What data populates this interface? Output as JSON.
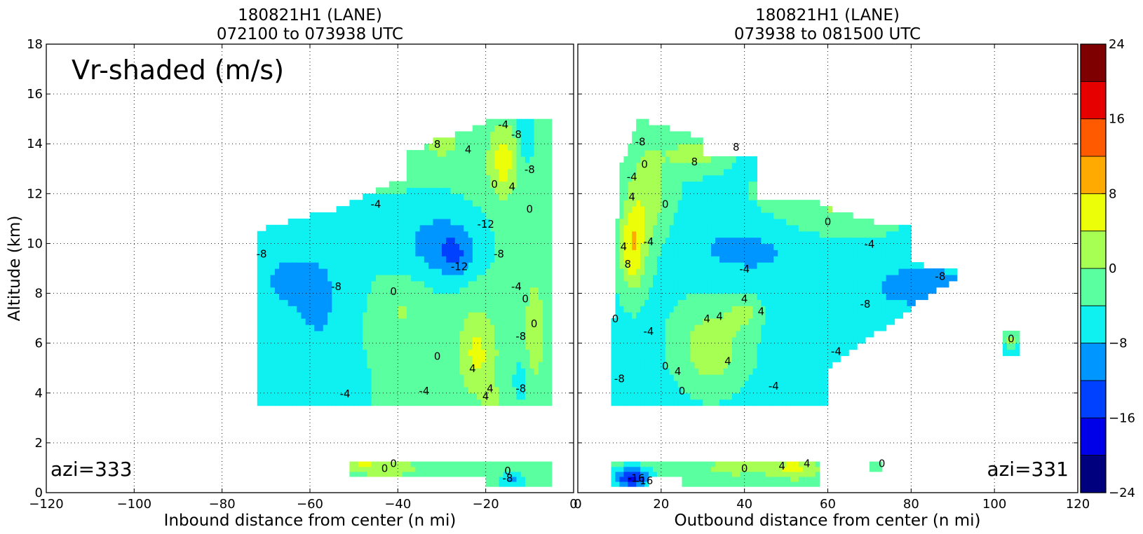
{
  "chart_data": [
    {
      "type": "heatmap",
      "title": "180821H1 (LANE)\n072100 to 073938 UTC",
      "title_lines": [
        "180821H1 (LANE)",
        "072100 to 073938 UTC"
      ],
      "annotation": "Vr-shaded (m/s)",
      "azi_label": "azi=333",
      "xlabel": "Inbound distance from center (n mi)",
      "ylabel": "Altitude (km)",
      "xlim": [
        -120,
        0
      ],
      "ylim": [
        0,
        18
      ],
      "x_ticks": [
        -120,
        -100,
        -80,
        -60,
        -40,
        -20,
        0
      ],
      "x_tick_labels": [
        "−120",
        "−100",
        "−80",
        "−60",
        "−40",
        "−20",
        "0"
      ],
      "y_ticks": [
        0,
        2,
        4,
        6,
        8,
        10,
        12,
        14,
        16,
        18
      ],
      "grid": true,
      "contour_labels": [
        {
          "text": "-8",
          "x": -71,
          "y": 9.6
        },
        {
          "text": "-8",
          "x": -54,
          "y": 8.3
        },
        {
          "text": "-4",
          "x": -45,
          "y": 11.6
        },
        {
          "text": "0",
          "x": -41,
          "y": 8.1
        },
        {
          "text": "-12",
          "x": -20,
          "y": 10.8
        },
        {
          "text": "-12",
          "x": -26,
          "y": 9.1
        },
        {
          "text": "-8",
          "x": -17,
          "y": 9.6
        },
        {
          "text": "-4",
          "x": -13,
          "y": 8.3
        },
        {
          "text": "0",
          "x": -11,
          "y": 7.8
        },
        {
          "text": "0",
          "x": -9,
          "y": 6.8
        },
        {
          "text": "-8",
          "x": -12,
          "y": 6.3
        },
        {
          "text": "0",
          "x": -31,
          "y": 5.5
        },
        {
          "text": "4",
          "x": -23,
          "y": 5.0
        },
        {
          "text": "4",
          "x": -19,
          "y": 4.2
        },
        {
          "text": "4",
          "x": -20,
          "y": 3.9
        },
        {
          "text": "-8",
          "x": -12,
          "y": 4.2
        },
        {
          "text": "-4",
          "x": -52,
          "y": 4.0
        },
        {
          "text": "-4",
          "x": -34,
          "y": 4.1
        },
        {
          "text": "0",
          "x": -18,
          "y": 12.4
        },
        {
          "text": "4",
          "x": -24,
          "y": 13.8
        },
        {
          "text": "8",
          "x": -31,
          "y": 14.0
        },
        {
          "text": "-4",
          "x": -16,
          "y": 14.8
        },
        {
          "text": "-8",
          "x": -13,
          "y": 14.4
        },
        {
          "text": "-8",
          "x": -10,
          "y": 13.0
        },
        {
          "text": "0",
          "x": -10,
          "y": 11.4
        },
        {
          "text": "4",
          "x": -14,
          "y": 12.3
        },
        {
          "text": "0",
          "x": -43,
          "y": 1.0
        },
        {
          "text": "0",
          "x": -41,
          "y": 1.2
        },
        {
          "text": "0",
          "x": -15,
          "y": 0.9
        },
        {
          "text": "-8",
          "x": -15,
          "y": 0.6
        }
      ]
    },
    {
      "type": "heatmap",
      "title": "180821H1 (LANE)\n073938 to 081500 UTC",
      "title_lines": [
        "180821H1 (LANE)",
        "073938 to 081500 UTC"
      ],
      "azi_label": "azi=331",
      "xlabel": "Outbound distance from center (n mi)",
      "ylabel": "",
      "xlim": [
        0,
        120
      ],
      "ylim": [
        0,
        18
      ],
      "x_ticks": [
        0,
        20,
        40,
        60,
        80,
        100,
        120
      ],
      "x_tick_labels": [
        "0",
        "20",
        "40",
        "60",
        "80",
        "100",
        "120"
      ],
      "y_ticks": [
        0,
        2,
        4,
        6,
        8,
        10,
        12,
        14,
        16,
        18
      ],
      "grid": true,
      "contour_labels": [
        {
          "text": "-8",
          "x": 15,
          "y": 14.1
        },
        {
          "text": "0",
          "x": 16,
          "y": 13.2
        },
        {
          "text": "-4",
          "x": 13,
          "y": 12.7
        },
        {
          "text": "4",
          "x": 13,
          "y": 11.9
        },
        {
          "text": "0",
          "x": 21,
          "y": 11.6
        },
        {
          "text": "-4",
          "x": 17,
          "y": 10.1
        },
        {
          "text": "4",
          "x": 11,
          "y": 9.9
        },
        {
          "text": "8",
          "x": 12,
          "y": 9.2
        },
        {
          "text": "8",
          "x": 28,
          "y": 13.3
        },
        {
          "text": "8",
          "x": 38,
          "y": 13.9
        },
        {
          "text": "0",
          "x": 9,
          "y": 7.0
        },
        {
          "text": "-4",
          "x": 17,
          "y": 6.5
        },
        {
          "text": "-8",
          "x": 10,
          "y": 4.6
        },
        {
          "text": "-4",
          "x": 40,
          "y": 9.0
        },
        {
          "text": "4",
          "x": 40,
          "y": 7.8
        },
        {
          "text": "4",
          "x": 44,
          "y": 7.3
        },
        {
          "text": "4",
          "x": 31,
          "y": 7.0
        },
        {
          "text": "4",
          "x": 34,
          "y": 7.1
        },
        {
          "text": "4",
          "x": 36,
          "y": 5.3
        },
        {
          "text": "4",
          "x": 24,
          "y": 4.9
        },
        {
          "text": "0",
          "x": 21,
          "y": 5.1
        },
        {
          "text": "0",
          "x": 25,
          "y": 4.1
        },
        {
          "text": "-4",
          "x": 47,
          "y": 4.3
        },
        {
          "text": "-4",
          "x": 62,
          "y": 5.7
        },
        {
          "text": "0",
          "x": 60,
          "y": 10.9
        },
        {
          "text": "-4",
          "x": 70,
          "y": 10.0
        },
        {
          "text": "-8",
          "x": 69,
          "y": 7.6
        },
        {
          "text": "-8",
          "x": 87,
          "y": 8.7
        },
        {
          "text": "0",
          "x": 104,
          "y": 6.2
        },
        {
          "text": "0",
          "x": 40,
          "y": 1.0
        },
        {
          "text": "4",
          "x": 49,
          "y": 1.1
        },
        {
          "text": "4",
          "x": 55,
          "y": 1.2
        },
        {
          "text": "0",
          "x": 73,
          "y": 1.2
        },
        {
          "text": "-16",
          "x": 14,
          "y": 0.6
        },
        {
          "text": "-16",
          "x": 16,
          "y": 0.5
        }
      ]
    }
  ],
  "colorbar": {
    "levels": [
      -24,
      -20,
      -16,
      -12,
      -8,
      -4,
      0,
      4,
      8,
      12,
      16,
      20,
      24
    ],
    "tick_values": [
      -24,
      -16,
      -8,
      0,
      8,
      16,
      24
    ],
    "tick_labels": [
      "−24",
      "−16",
      "−8",
      "0",
      "8",
      "16",
      "24"
    ],
    "colors": [
      "#00007f",
      "#0000e8",
      "#0040ff",
      "#0096ff",
      "#0ff0f0",
      "#5affa0",
      "#a6ff52",
      "#ecff08",
      "#ffaa00",
      "#ff5a00",
      "#e60000",
      "#7f0000"
    ],
    "contour_negative_color": "#808080",
    "contour_positive_color": "#000000"
  }
}
